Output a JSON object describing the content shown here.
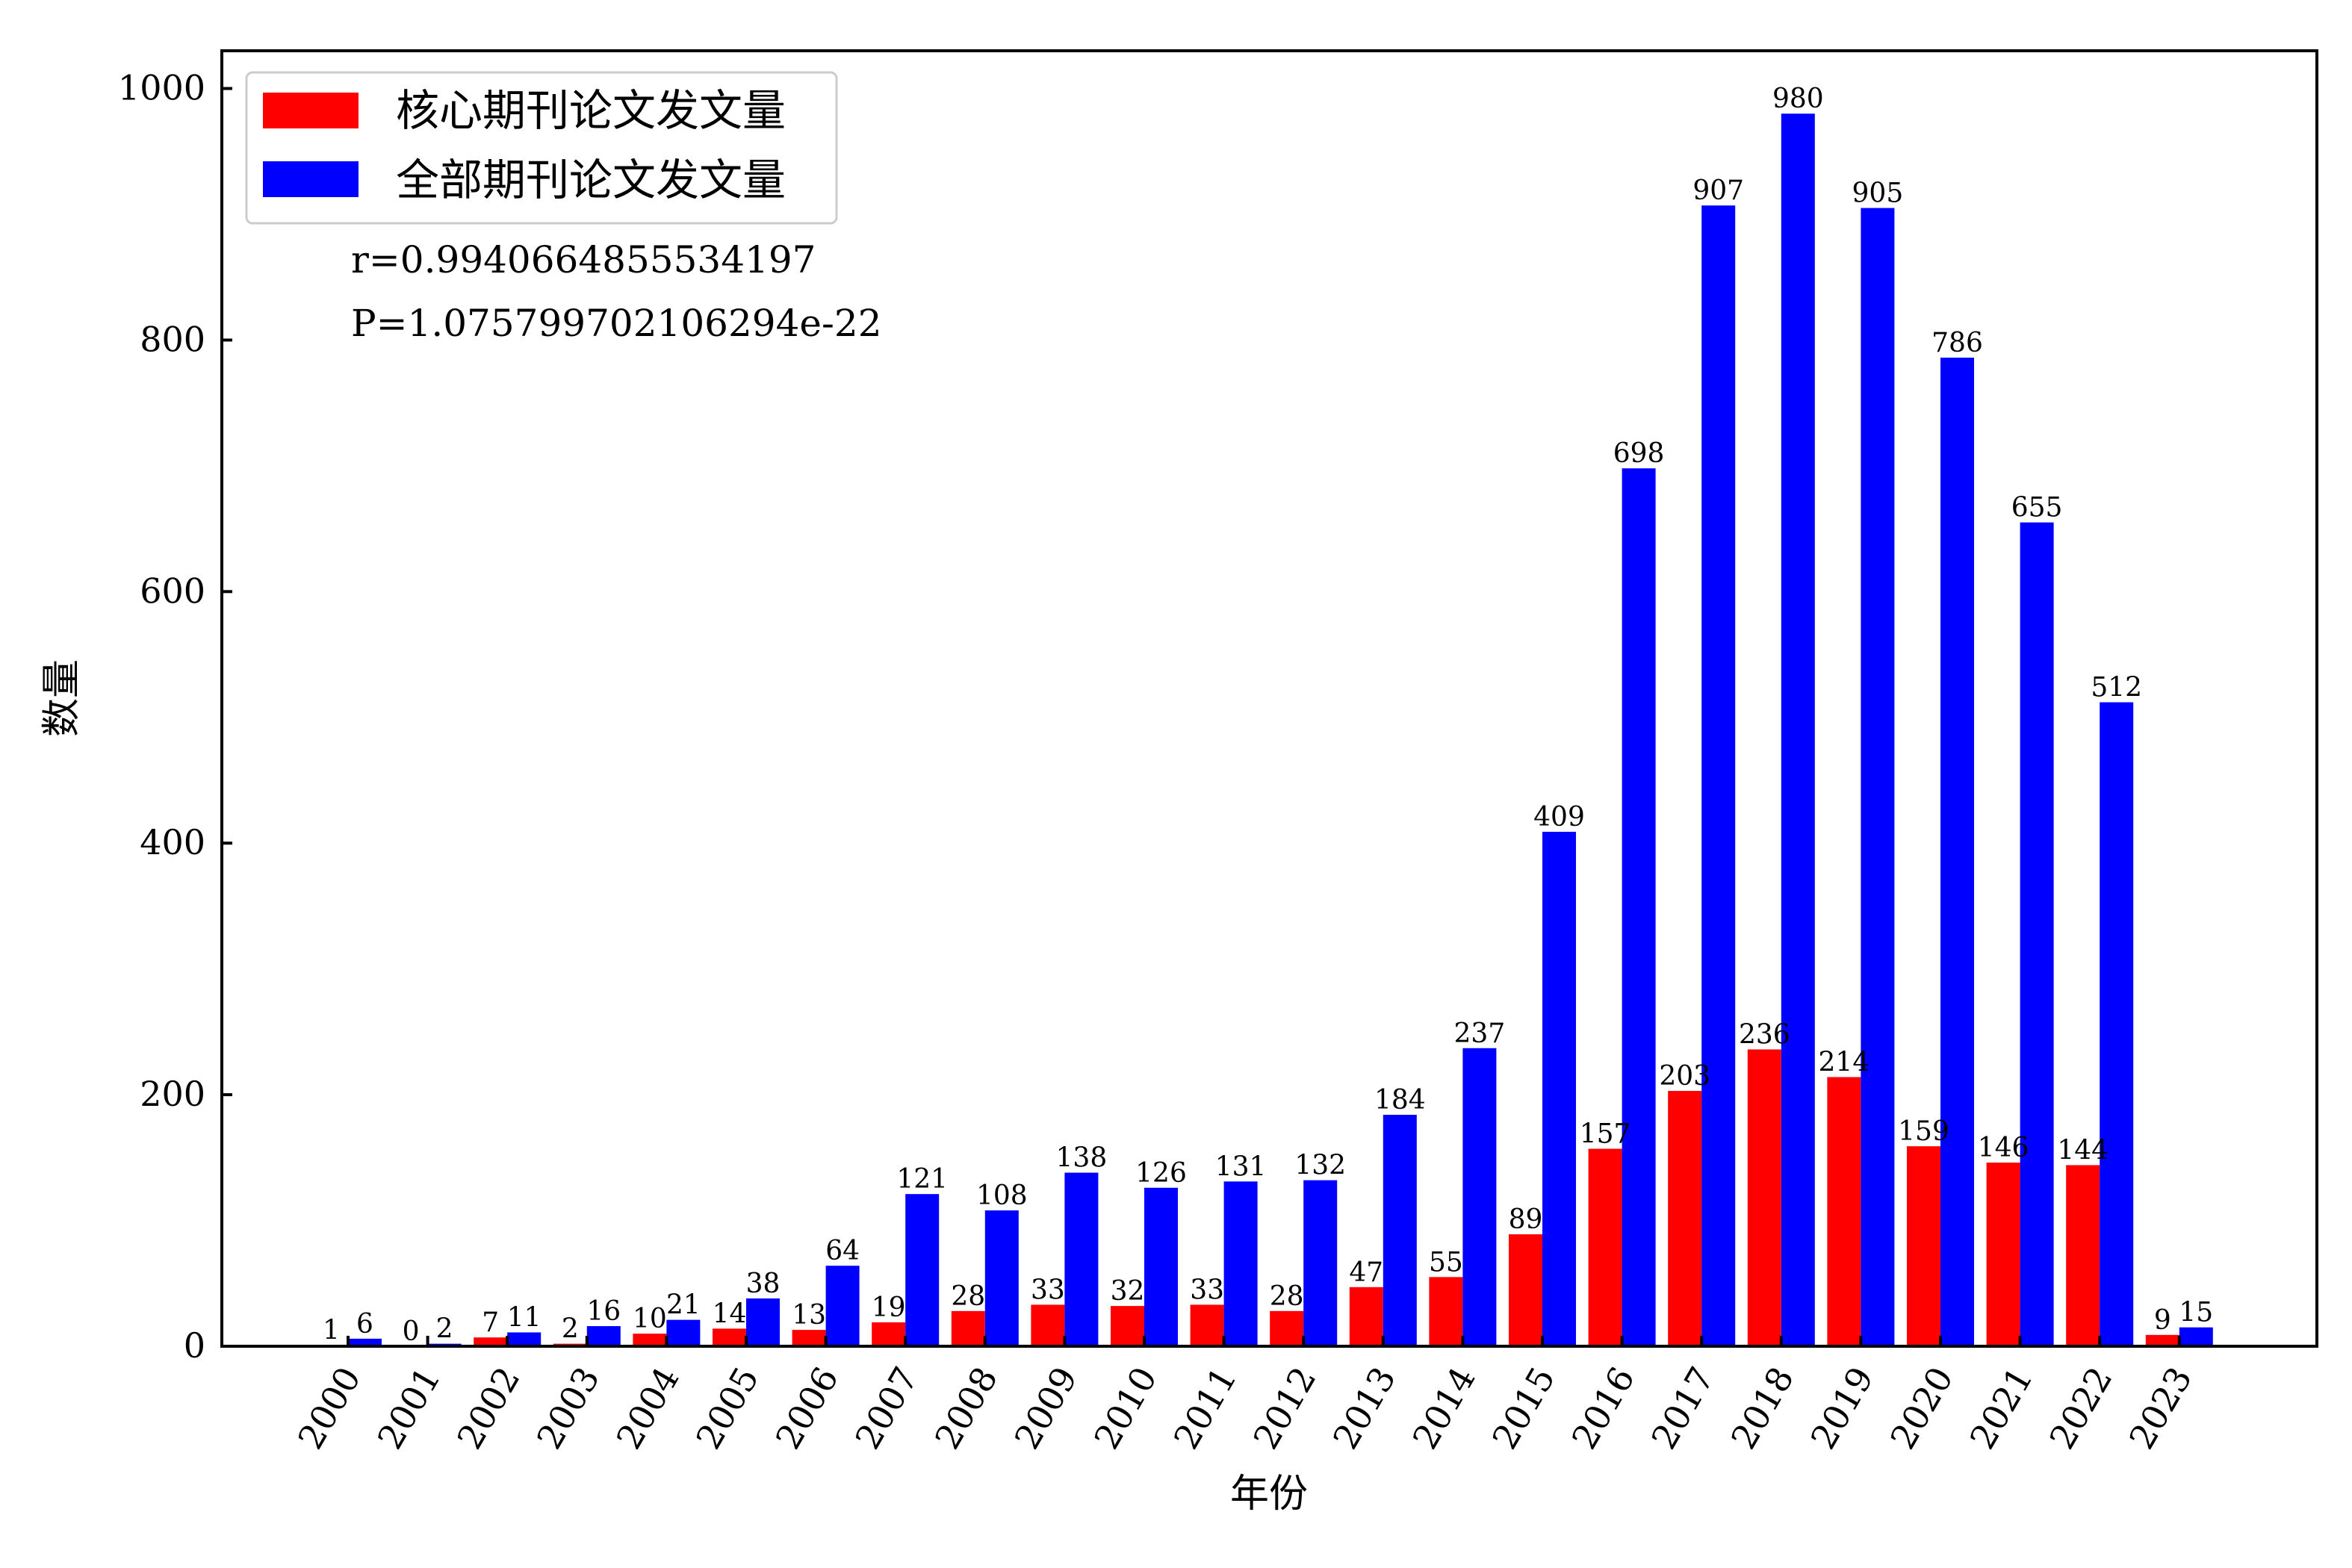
{
  "chart_data": {
    "type": "bar",
    "xlabel": "年份",
    "ylabel": "数量",
    "categories": [
      "2000",
      "2001",
      "2002",
      "2003",
      "2004",
      "2005",
      "2006",
      "2007",
      "2008",
      "2009",
      "2010",
      "2011",
      "2012",
      "2013",
      "2014",
      "2015",
      "2016",
      "2017",
      "2018",
      "2019",
      "2020",
      "2021",
      "2022",
      "2023"
    ],
    "series": [
      {
        "name": "核心期刊论文发文量",
        "color": "#ff0000",
        "values": [
          1,
          0,
          7,
          2,
          10,
          14,
          13,
          19,
          28,
          33,
          32,
          33,
          28,
          47,
          55,
          89,
          157,
          203,
          236,
          214,
          159,
          146,
          144,
          9
        ]
      },
      {
        "name": "全部期刊论文发文量",
        "color": "#0000ff",
        "values": [
          6,
          2,
          11,
          16,
          21,
          38,
          64,
          121,
          108,
          138,
          126,
          131,
          132,
          184,
          237,
          409,
          698,
          907,
          980,
          905,
          786,
          655,
          512,
          15
        ]
      }
    ],
    "ylim": [
      0,
      1030
    ],
    "yticks": [
      0,
      200,
      400,
      600,
      800,
      1000
    ],
    "legend_position": "top-left",
    "grid": false,
    "annotations": [
      "r=0.9940664855534197",
      "P=1.075799702106294e-22"
    ]
  }
}
